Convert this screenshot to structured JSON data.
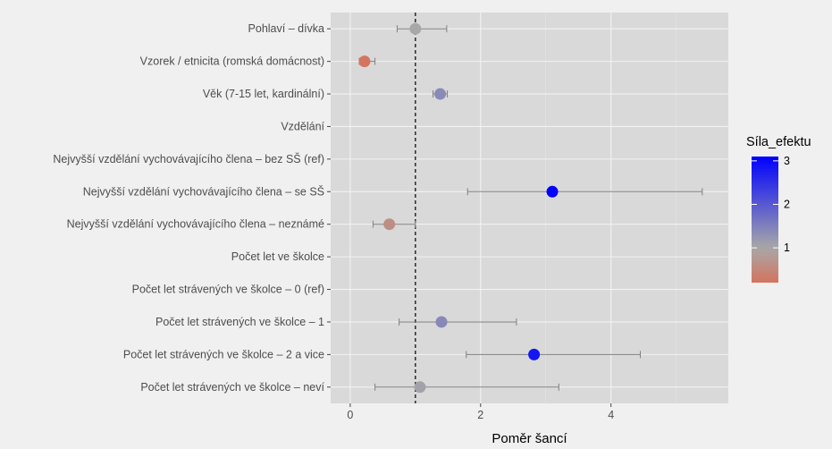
{
  "chart_data": {
    "type": "scatter",
    "subtype": "forest-plot (odds ratios with confidence intervals)",
    "xlabel": "Poměr šancí",
    "ylabel": "",
    "xlim": [
      -0.3,
      5.8
    ],
    "xticks": [
      0,
      2,
      4
    ],
    "reference_line_x": 1,
    "reference_line_style": "dashed",
    "grid": true,
    "legend": {
      "title": "Síla_efektu",
      "placement": "right",
      "type": "continuous colorbar",
      "ticks": [
        1,
        2,
        3
      ],
      "range": [
        0.2,
        3.1
      ],
      "colors": {
        "low": "#d4745f",
        "mid": "#a8a8a8",
        "high": "#0000ff"
      }
    },
    "rows": [
      {
        "label": "Pohlaví – dívka",
        "estimate": 1.0,
        "ci_low": 0.72,
        "ci_high": 1.48
      },
      {
        "label": "Vzorek / etnicita (romská domácnost)",
        "estimate": 0.22,
        "ci_low": 0.14,
        "ci_high": 0.38
      },
      {
        "label": "Věk (7-15 let, kardinální)",
        "estimate": 1.38,
        "ci_low": 1.27,
        "ci_high": 1.49
      },
      {
        "label": "Vzdělání",
        "estimate": null,
        "ci_low": null,
        "ci_high": null
      },
      {
        "label": "Nejvyšší vzdělání vychovávajícího člena – bez SŠ (ref)",
        "estimate": null,
        "ci_low": null,
        "ci_high": null
      },
      {
        "label": "Nejvyšší vzdělání vychovávajícího člena – se SŠ",
        "estimate": 3.1,
        "ci_low": 1.8,
        "ci_high": 5.4
      },
      {
        "label": "Nejvyšší vzdělání vychovávajícího člena – neznámé",
        "estimate": 0.6,
        "ci_low": 0.35,
        "ci_high": 1.0
      },
      {
        "label": "Počet let ve školce",
        "estimate": null,
        "ci_low": null,
        "ci_high": null
      },
      {
        "label": "Počet let strávených ve školce – 0 (ref)",
        "estimate": null,
        "ci_low": null,
        "ci_high": null
      },
      {
        "label": "Počet let strávených ve školce – 1",
        "estimate": 1.4,
        "ci_low": 0.75,
        "ci_high": 2.55
      },
      {
        "label": "Počet let strávených ve školce – 2 a vice",
        "estimate": 2.82,
        "ci_low": 1.78,
        "ci_high": 4.45
      },
      {
        "label": "Počet let strávených ve školce – neví",
        "estimate": 1.07,
        "ci_low": 0.38,
        "ci_high": 3.2
      }
    ]
  }
}
